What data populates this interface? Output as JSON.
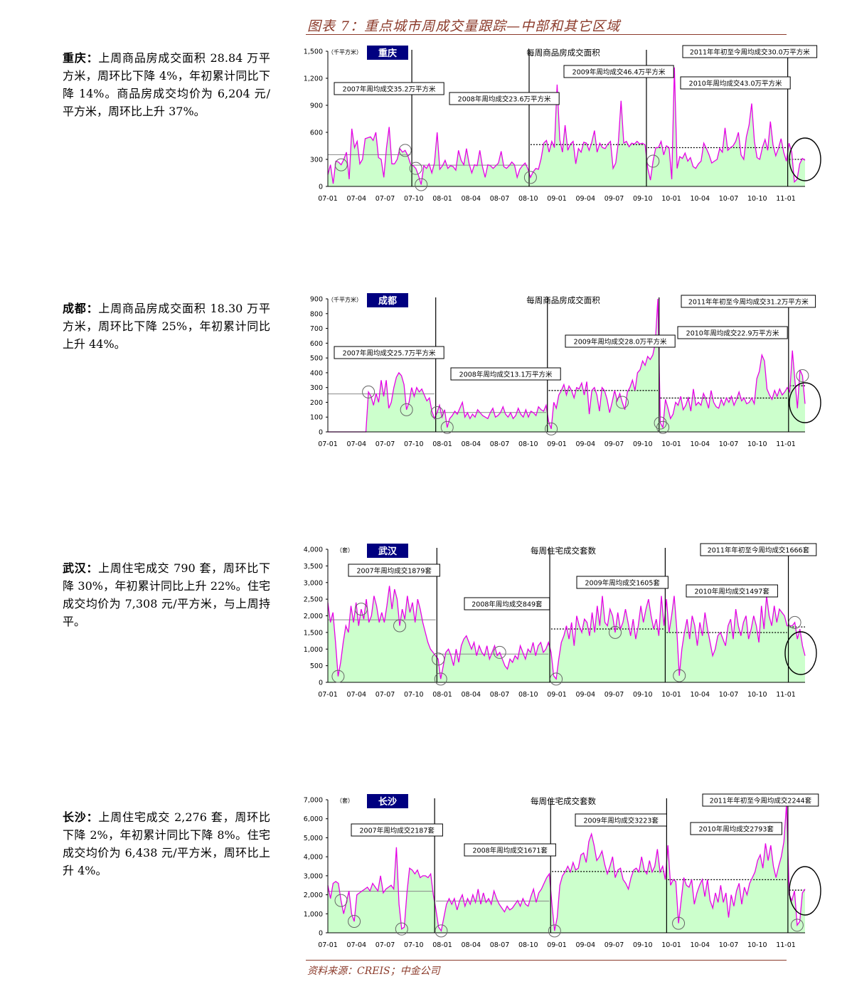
{
  "figure_title": "图表 7：重点城市周成交量跟踪—中部和其它区域",
  "source": "资料来源：CREIS；中金公司",
  "descriptions": [
    {
      "city": "重庆",
      "colon": "：",
      "text": "上周商品房成交面积 28.84 万平方米，周环比下降 4%，年初累计同比下降 14%。商品房成交均价为 6,204 元/平方米，周环比上升 37%。"
    },
    {
      "city": "成都",
      "colon": "：",
      "text": "上周商品房成交面积 18.30 万平方米，周环比下降 25%，年初累计同比上升 44%。"
    },
    {
      "city": "武汉",
      "colon": "：",
      "text": "上周住宅成交 790 套，周环比下降 30%，年初累计同比上升 22%。住宅成交均价为 7,308 元/平方米，与上周持平。"
    },
    {
      "city": "长沙",
      "colon": "：",
      "text": "上周住宅成交 2,276 套，周环比下降 2%，年初累计同比下降 8%。住宅成交均价为 6,438 元/平方米，周环比上升 4%。"
    }
  ],
  "colors": {
    "line": "#e600e6",
    "fill": "#ccffcc",
    "city_box": "#000080",
    "title_accent": "#8b3a2a"
  },
  "chart_data": [
    {
      "type": "area",
      "city": "重庆",
      "chart_title": "每周商品房成交面积",
      "unit": "（千平方米）",
      "ylim": [
        0,
        1500
      ],
      "yticks": [
        0,
        300,
        600,
        900,
        1200,
        1500
      ],
      "ytick_labels": [
        "0",
        "300",
        "600",
        "900",
        "1,200",
        "1,500"
      ],
      "x_ticks": [
        "07-01",
        "07-04",
        "07-07",
        "07-10",
        "08-01",
        "08-04",
        "08-07",
        "08-10",
        "09-01",
        "09-04",
        "09-07",
        "09-10",
        "10-01",
        "10-04",
        "10-07",
        "10-10",
        "11-01"
      ],
      "annotations": [
        "2007年周均成交35.2万平方米",
        "2008年周均成交23.6万平方米",
        "2009年周均成交46.4万平方米",
        "2010年周均成交43.0万平方米",
        "2011年年初至今周均成交30.0万平方米"
      ],
      "year_averages": [
        352,
        236,
        464,
        430,
        300
      ],
      "series": [
        {
          "year": 2007,
          "values": [
            130,
            240,
            30,
            280,
            270,
            240,
            300,
            380,
            80,
            640,
            430,
            500,
            250,
            300,
            530,
            540,
            550,
            510,
            600,
            320,
            300,
            100,
            430,
            660,
            250,
            250,
            300,
            420,
            380,
            400,
            340,
            250
          ]
        },
        {
          "year": 2008,
          "values": [
            230,
            200,
            120,
            20,
            230,
            200,
            250,
            150,
            260,
            600,
            190,
            230,
            290,
            200,
            230,
            220,
            180,
            400,
            290,
            240,
            420,
            250,
            150,
            240,
            230,
            400,
            220,
            100,
            240,
            230,
            200,
            230,
            260,
            390,
            220,
            200,
            230,
            270,
            240,
            100,
            190,
            230,
            260,
            200
          ]
        },
        {
          "year": 2009,
          "values": [
            100,
            160,
            200,
            190,
            310,
            480,
            510,
            380,
            500,
            430,
            1130,
            520,
            380,
            680,
            400,
            470,
            500,
            250,
            420,
            380,
            490,
            480,
            400,
            490,
            620,
            380,
            480,
            430,
            420,
            470,
            500,
            200,
            260,
            500,
            950,
            480,
            500,
            440,
            480,
            470,
            500,
            470,
            480,
            460
          ]
        },
        {
          "year": 2010,
          "values": [
            200,
            70,
            280,
            430,
            430,
            500,
            350,
            450,
            430,
            80,
            1320,
            200,
            330,
            310,
            370,
            280,
            320,
            220,
            200,
            250,
            280,
            480,
            420,
            350,
            260,
            280,
            300,
            420,
            380,
            650,
            400,
            430,
            450,
            500,
            600,
            350,
            300,
            550,
            680,
            920,
            500,
            320,
            300,
            430,
            520,
            400,
            720,
            460,
            340,
            420,
            530,
            380,
            280
          ]
        },
        {
          "year": 2011,
          "values": [
            480,
            380,
            50,
            80,
            250,
            310,
            290
          ]
        }
      ]
    },
    {
      "type": "area",
      "city": "成都",
      "chart_title": "每周商品房成交面积",
      "unit": "（千平方米）",
      "ylim": [
        0,
        900
      ],
      "yticks": [
        0,
        100,
        200,
        300,
        400,
        500,
        600,
        700,
        800,
        900
      ],
      "ytick_labels": [
        "0",
        "100",
        "200",
        "300",
        "400",
        "500",
        "600",
        "700",
        "800",
        "900"
      ],
      "x_ticks": [
        "07-01",
        "07-04",
        "07-07",
        "07-10",
        "08-01",
        "08-04",
        "08-07",
        "08-10",
        "09-01",
        "09-04",
        "09-07",
        "09-10",
        "10-01",
        "10-04",
        "10-07",
        "10-10",
        "11-01"
      ],
      "annotations": [
        "2007年周均成交25.7万平方米",
        "2008年周均成交13.1万平方米",
        "2009年周均成交28.0万平方米",
        "2010年周均成交22.9万平方米",
        "2011年年初至今周均成交31.2万平方米"
      ],
      "year_averages": [
        257,
        131,
        280,
        229,
        312
      ],
      "series": [
        {
          "year": 2007,
          "values": [
            0,
            0,
            0,
            0,
            0,
            0,
            0,
            0,
            0,
            0,
            0,
            0,
            0,
            0,
            0,
            0,
            270,
            240,
            180,
            260,
            200,
            350,
            240,
            350,
            160,
            200,
            300,
            370,
            400,
            380,
            320,
            150,
            200,
            300,
            240,
            300,
            270,
            290,
            250,
            210,
            230,
            140,
            90
          ]
        },
        {
          "year": 2008,
          "values": [
            130,
            180,
            100,
            150,
            30,
            90,
            110,
            140,
            120,
            160,
            200,
            100,
            130,
            90,
            120,
            100,
            150,
            130,
            110,
            100,
            90,
            130,
            160,
            100,
            110,
            130,
            170,
            120,
            100,
            130,
            90,
            110,
            160,
            120,
            100,
            150,
            100,
            140,
            130,
            110,
            170,
            150,
            140,
            180
          ]
        },
        {
          "year": 2009,
          "values": [
            70,
            20,
            200,
            160,
            250,
            280,
            320,
            250,
            310,
            280,
            230,
            300,
            290,
            330,
            250,
            340,
            120,
            280,
            300,
            250,
            140,
            300,
            280,
            220,
            130,
            200,
            280,
            210,
            260,
            200,
            150,
            270,
            300,
            350,
            280,
            400,
            420,
            480,
            450,
            510,
            490,
            520,
            600,
            900
          ]
        },
        {
          "year": 2010,
          "values": [
            60,
            30,
            220,
            160,
            90,
            120,
            200,
            180,
            240,
            150,
            180,
            230,
            140,
            290,
            180,
            200,
            180,
            260,
            220,
            160,
            280,
            200,
            170,
            160,
            220,
            180,
            230,
            200,
            240,
            180,
            220,
            270,
            210,
            230,
            190,
            200,
            230,
            190,
            360,
            410,
            520,
            480,
            290,
            250,
            220,
            280,
            240,
            290,
            250,
            270,
            300
          ]
        },
        {
          "year": 2011,
          "values": [
            270,
            550,
            350,
            160,
            420,
            380,
            190
          ]
        }
      ]
    },
    {
      "type": "area",
      "city": "武汉",
      "chart_title": "每周住宅成交套数",
      "unit": "（套）",
      "ylim": [
        0,
        4000
      ],
      "yticks": [
        0,
        500,
        1000,
        1500,
        2000,
        2500,
        3000,
        3500,
        4000
      ],
      "ytick_labels": [
        "0",
        "500",
        "1,000",
        "1,500",
        "2,000",
        "2,500",
        "3,000",
        "3,500",
        "4,000"
      ],
      "x_ticks": [
        "07-01",
        "07-04",
        "07-07",
        "07-10",
        "08-01",
        "08-04",
        "08-07",
        "08-10",
        "09-01",
        "09-04",
        "09-07",
        "09-10",
        "10-01",
        "10-04",
        "10-07",
        "10-10",
        "11-01"
      ],
      "annotations": [
        "2007年周均成交1879套",
        "2008年周均成交849套",
        "2009年周均成交1605套",
        "2010年周均成交1497套",
        "2011年年初至今周均成交1666套"
      ],
      "year_averages": [
        1879,
        849,
        1605,
        1497,
        1666
      ],
      "series": [
        {
          "year": 2007,
          "values": [
            2400,
            1800,
            2100,
            1200,
            180,
            600,
            1200,
            1700,
            1500,
            2300,
            1800,
            2400,
            1700,
            2200,
            1900,
            2500,
            1800,
            2000,
            2600,
            2300,
            1800,
            2100,
            1800,
            2300,
            2900,
            2200,
            2800,
            2500,
            1700,
            2200,
            1900,
            2600,
            2100,
            2400,
            1800,
            2500,
            2200,
            1800,
            1500,
            1200,
            1000,
            900,
            800
          ]
        },
        {
          "year": 2008,
          "values": [
            700,
            100,
            500,
            900,
            1000,
            800,
            500,
            1000,
            600,
            1100,
            1300,
            1400,
            1200,
            1000,
            1200,
            800,
            1100,
            900,
            800,
            1100,
            700,
            900,
            1100,
            800,
            900,
            700,
            500,
            400,
            700,
            600,
            800,
            700,
            1100,
            900,
            700,
            1000,
            900,
            1200,
            800,
            1100,
            1200,
            900,
            1000,
            1200
          ]
        },
        {
          "year": 2009,
          "values": [
            900,
            200,
            100,
            700,
            1200,
            1400,
            1700,
            1300,
            1800,
            1100,
            2000,
            1700,
            1500,
            1900,
            1800,
            1400,
            2100,
            1500,
            2300,
            1700,
            2600,
            1800,
            1700,
            2200,
            2000,
            1500,
            2100,
            1600,
            1800,
            2200,
            1800,
            1400,
            1900,
            1300,
            1700,
            2300,
            1800,
            2200,
            2500,
            2000,
            1600,
            1900,
            1400,
            2600,
            1700
          ]
        },
        {
          "year": 2010,
          "values": [
            2500,
            1500,
            2000,
            2600,
            1600,
            200,
            1000,
            1500,
            1900,
            1300,
            2000,
            1700,
            1100,
            1800,
            1400,
            2100,
            1600,
            1200,
            800,
            1000,
            1400,
            1500,
            1300,
            1100,
            1700,
            1900,
            1300,
            2200,
            1700,
            1400,
            1800,
            2000,
            1300,
            1600,
            2000,
            1700,
            1200,
            2300,
            1600,
            2600,
            2000,
            1700,
            2300,
            1800,
            2200,
            2100,
            2000,
            1700
          ]
        },
        {
          "year": 2011,
          "values": [
            1700,
            1700,
            1800,
            1300,
            1600,
            1100,
            800
          ]
        }
      ]
    },
    {
      "type": "area",
      "city": "长沙",
      "chart_title": "每周住宅成交套数",
      "unit": "（套）",
      "ylim": [
        0,
        7000
      ],
      "yticks": [
        0,
        1000,
        2000,
        3000,
        4000,
        5000,
        6000,
        7000
      ],
      "ytick_labels": [
        "0",
        "1,000",
        "2,000",
        "3,000",
        "4,000",
        "5,000",
        "6,000",
        "7,000"
      ],
      "x_ticks": [
        "07-01",
        "07-04",
        "07-07",
        "07-10",
        "08-01",
        "08-04",
        "08-07",
        "08-10",
        "09-01",
        "09-04",
        "09-07",
        "09-10",
        "10-01",
        "10-04",
        "10-07",
        "10-10",
        "11-01"
      ],
      "annotations": [
        "2007年周均成交2187套",
        "2008年周均成交1671套",
        "2009年周均成交3223套",
        "2010年周均成交2793套",
        "2011年年初至今周均成交2244套"
      ],
      "year_averages": [
        2187,
        1671,
        3223,
        2793,
        2244
      ],
      "series": [
        {
          "year": 2007,
          "values": [
            2500,
            1800,
            2600,
            2700,
            2600,
            1700,
            1000,
            1600,
            2200,
            1000,
            600,
            2000,
            2100,
            2200,
            2300,
            2400,
            2200,
            2600,
            2400,
            2200,
            3000,
            2100,
            2300,
            2400,
            2500,
            2300,
            4500,
            1500,
            200,
            300,
            2100,
            3400,
            3300,
            3100,
            3300,
            2900,
            3000,
            3000,
            2900,
            3100,
            2000
          ]
        },
        {
          "year": 2008,
          "values": [
            1200,
            300,
            100,
            800,
            1500,
            1800,
            1500,
            1800,
            1200,
            1700,
            2000,
            1400,
            1800,
            1500,
            2000,
            1600,
            2300,
            1500,
            2100,
            1600,
            1800,
            1500,
            2200,
            1800,
            1500,
            1300,
            1100,
            1400,
            1200,
            1300,
            1500,
            1700,
            1400,
            1800,
            1500,
            1400,
            1900,
            2300,
            1600,
            2100,
            2300,
            2600,
            2900,
            3100
          ]
        },
        {
          "year": 2009,
          "values": [
            1500,
            100,
            800,
            2500,
            3000,
            3200,
            3500,
            3200,
            3700,
            3300,
            3400,
            4100,
            4200,
            3700,
            4800,
            5200,
            4600,
            3800,
            4000,
            4300,
            3600,
            3100,
            3500,
            4000,
            2900,
            3300,
            3400,
            2800,
            2600,
            2300,
            2900,
            3300,
            3400,
            3200,
            4000,
            3300,
            3100,
            3800,
            3200,
            3500,
            4400,
            3200,
            3500,
            2800
          ]
        },
        {
          "year": 2010,
          "values": [
            4600,
            2500,
            2800,
            2700,
            500,
            1700,
            2900,
            2500,
            2400,
            2800,
            1500,
            2100,
            2500,
            2800,
            1900,
            2800,
            1700,
            1300,
            2100,
            1600,
            2500,
            1600,
            2100,
            800,
            2000,
            1400,
            2200,
            2600,
            1500,
            2400,
            2000,
            2600,
            2900,
            3200,
            3800,
            4100,
            3400,
            4700,
            3800,
            4600,
            3500,
            2900,
            3500,
            4000,
            4800,
            6800
          ]
        },
        {
          "year": 2011,
          "values": [
            2000,
            1700,
            2200,
            400,
            600,
            2100,
            2300
          ]
        }
      ]
    }
  ]
}
